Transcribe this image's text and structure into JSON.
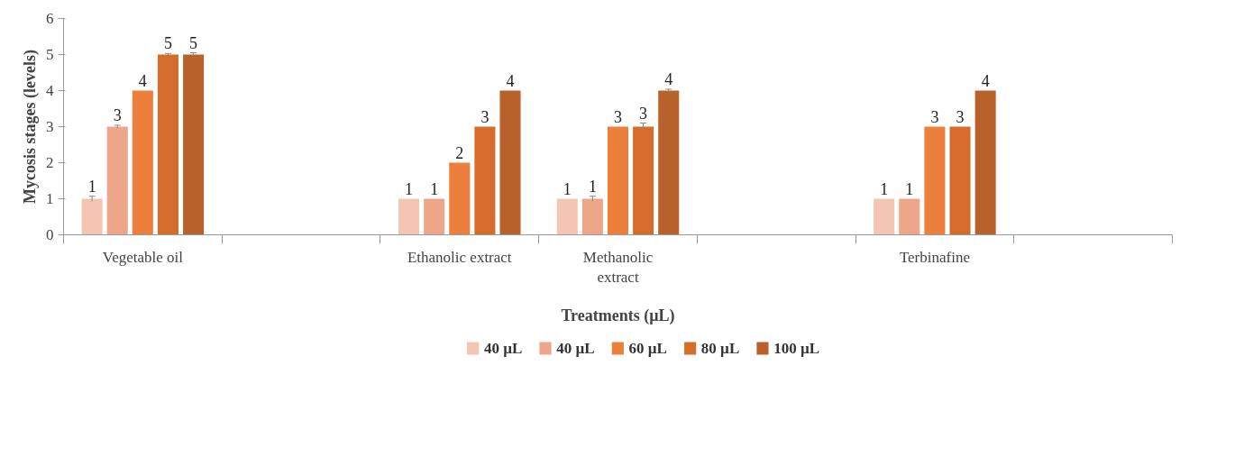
{
  "chart_data": {
    "type": "bar",
    "xlabel": "Treatments (µL)",
    "ylabel": "Mycosis stages (levels)",
    "categories": [
      "Vegetable oil",
      null,
      "Ethanolic extract",
      "Methanolic extract",
      null,
      "Terbinafine",
      null
    ],
    "series": [
      {
        "name": "40 µL",
        "color": "#f4c5b3",
        "values": [
          1,
          null,
          1,
          1,
          null,
          1,
          null
        ],
        "errors": [
          0.07,
          null,
          null,
          null,
          null,
          null,
          null
        ]
      },
      {
        "name": "40 µL",
        "color": "#eea68b",
        "values": [
          3,
          null,
          1,
          1,
          null,
          1,
          null
        ],
        "errors": [
          0.04,
          null,
          null,
          0.07,
          null,
          null,
          null
        ]
      },
      {
        "name": "60 µL",
        "color": "#eb7f3b",
        "values": [
          4,
          null,
          2,
          3,
          null,
          3,
          null
        ],
        "errors": [
          null,
          null,
          null,
          null,
          null,
          null,
          null
        ]
      },
      {
        "name": "80 µL",
        "color": "#d46d2b",
        "values": [
          5,
          null,
          3,
          3,
          null,
          3,
          null
        ],
        "errors": [
          0.03,
          null,
          null,
          0.1,
          null,
          null,
          null
        ]
      },
      {
        "name": "100 µL",
        "color": "#b8612b",
        "values": [
          5,
          null,
          4,
          4,
          null,
          4,
          null
        ],
        "errors": [
          0.05,
          null,
          null,
          0.04,
          null,
          null,
          null
        ]
      }
    ],
    "ylim": [
      0,
      6
    ],
    "yticks": [
      0,
      1,
      2,
      3,
      4,
      5,
      6
    ],
    "grid": false,
    "legend": "bottom",
    "data_labels": true
  }
}
